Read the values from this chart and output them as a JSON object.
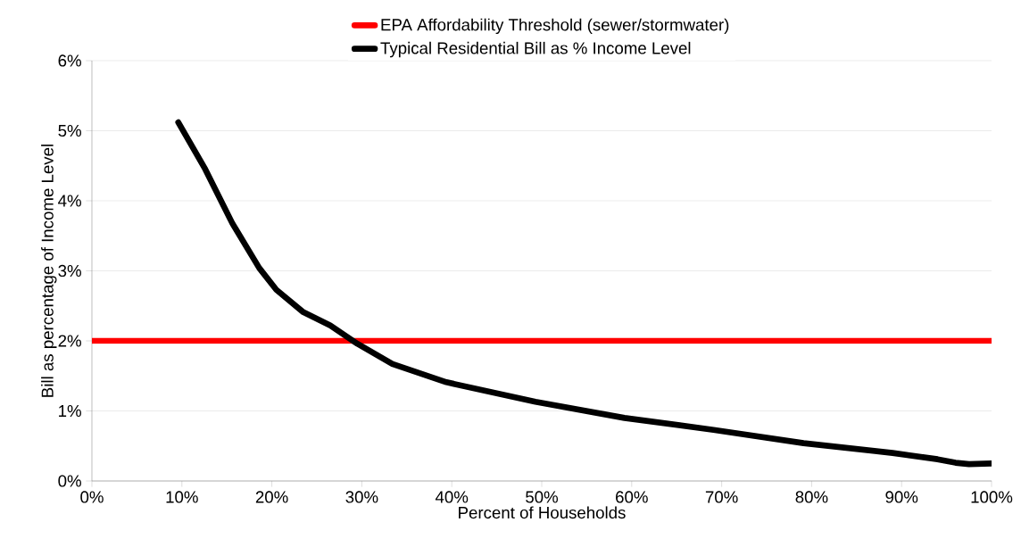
{
  "chart_data": {
    "type": "line",
    "xlabel": "Percent of Households",
    "ylabel": "Bill as percentage of Income Level",
    "xlim": [
      0,
      100
    ],
    "ylim": [
      0,
      6
    ],
    "xticks": [
      {
        "value": 0,
        "label": "0%"
      },
      {
        "value": 10,
        "label": "10%"
      },
      {
        "value": 20,
        "label": "20%"
      },
      {
        "value": 30,
        "label": "30%"
      },
      {
        "value": 40,
        "label": "40%"
      },
      {
        "value": 50,
        "label": "50%"
      },
      {
        "value": 60,
        "label": "60%"
      },
      {
        "value": 70,
        "label": "70%"
      },
      {
        "value": 80,
        "label": "80%"
      },
      {
        "value": 90,
        "label": "90%"
      },
      {
        "value": 100,
        "label": "100%"
      }
    ],
    "yticks": [
      {
        "value": 0,
        "label": "0%"
      },
      {
        "value": 1,
        "label": "1%"
      },
      {
        "value": 2,
        "label": "2%"
      },
      {
        "value": 3,
        "label": "3%"
      },
      {
        "value": 4,
        "label": "4%"
      },
      {
        "value": 5,
        "label": "5%"
      },
      {
        "value": 6,
        "label": "6%"
      }
    ],
    "grid": "y",
    "legend": "top",
    "series": [
      {
        "name": "EPA Affordability Threshold (sewer/stormwater)",
        "color": "#ff0000",
        "x": [
          0,
          100
        ],
        "values": [
          2,
          2
        ]
      },
      {
        "name": "Typical Residential Bill as % Income Level",
        "color": "#000000",
        "x": [
          9.6,
          12.6,
          15.6,
          18.6,
          20.5,
          23.5,
          26.5,
          29.5,
          33.4,
          39.4,
          49.3,
          59.2,
          69.1,
          79.1,
          89,
          94,
          96,
          97.5,
          100
        ],
        "values": [
          5.12,
          4.45,
          3.68,
          3.04,
          2.73,
          2.41,
          2.22,
          1.96,
          1.67,
          1.41,
          1.13,
          0.9,
          0.73,
          0.54,
          0.4,
          0.31,
          0.26,
          0.24,
          0.25
        ]
      }
    ]
  }
}
